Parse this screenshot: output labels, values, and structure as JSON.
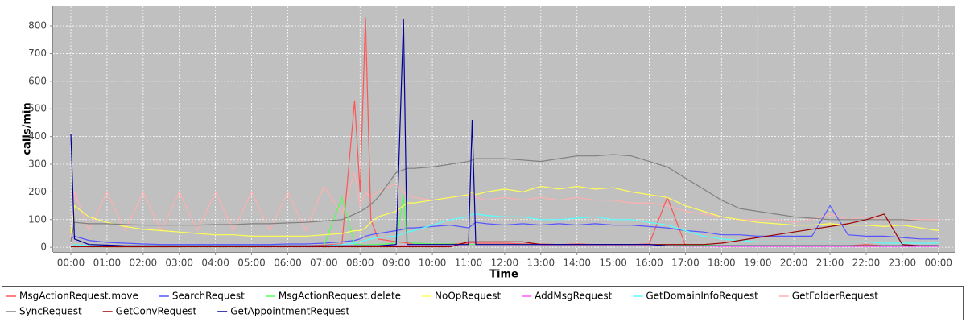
{
  "chart_data": {
    "type": "line",
    "x_label": "Time",
    "y_label": "calls/min",
    "x": [
      0,
      0.1,
      0.5,
      1,
      1.5,
      2,
      2.5,
      3,
      3.5,
      4,
      4.5,
      5,
      5.5,
      6,
      6.5,
      7,
      7.5,
      7.85,
      8,
      8.15,
      8.3,
      8.5,
      9,
      9.2,
      9.3,
      9.5,
      10,
      10.5,
      11,
      11.1,
      11.2,
      11.5,
      12,
      12.5,
      13,
      13.5,
      14,
      14.5,
      15,
      15.5,
      16,
      16.5,
      17,
      17.5,
      18,
      18.5,
      19,
      19.5,
      20,
      20.5,
      21,
      21.5,
      22,
      22.5,
      23,
      23.5,
      24
    ],
    "xlim": [
      -0.49,
      24.45
    ],
    "xticks": [
      {
        "value": 0,
        "label": "00:00"
      },
      {
        "value": 1,
        "label": "01:00"
      },
      {
        "value": 2,
        "label": "02:00"
      },
      {
        "value": 3,
        "label": "03:00"
      },
      {
        "value": 4,
        "label": "04:00"
      },
      {
        "value": 5,
        "label": "05:00"
      },
      {
        "value": 6,
        "label": "06:00"
      },
      {
        "value": 7,
        "label": "07:00"
      },
      {
        "value": 8,
        "label": "08:00"
      },
      {
        "value": 9,
        "label": "09:00"
      },
      {
        "value": 10,
        "label": "10:00"
      },
      {
        "value": 11,
        "label": "11:00"
      },
      {
        "value": 12,
        "label": "12:00"
      },
      {
        "value": 13,
        "label": "13:00"
      },
      {
        "value": 14,
        "label": "14:00"
      },
      {
        "value": 15,
        "label": "15:00"
      },
      {
        "value": 16,
        "label": "16:00"
      },
      {
        "value": 17,
        "label": "17:00"
      },
      {
        "value": 18,
        "label": "18:00"
      },
      {
        "value": 19,
        "label": "19:00"
      },
      {
        "value": 20,
        "label": "20:00"
      },
      {
        "value": 21,
        "label": "21:00"
      },
      {
        "value": 22,
        "label": "22:00"
      },
      {
        "value": 23,
        "label": "23:00"
      },
      {
        "value": 24,
        "label": "00:00"
      }
    ],
    "ylim": [
      -17,
      870
    ],
    "yticks": [
      0,
      100,
      200,
      300,
      400,
      500,
      600,
      700,
      800
    ],
    "grid": true,
    "legend": "bottom",
    "series": [
      {
        "name": "MsgActionRequest.move",
        "color": "#ff5555",
        "values": [
          5,
          5,
          3,
          2,
          2,
          2,
          2,
          2,
          3,
          3,
          3,
          3,
          4,
          5,
          5,
          8,
          12,
          530,
          200,
          830,
          100,
          30,
          20,
          18,
          15,
          15,
          12,
          12,
          15,
          18,
          15,
          15,
          15,
          12,
          12,
          10,
          12,
          10,
          10,
          10,
          12,
          180,
          8,
          5,
          5,
          5,
          5,
          5,
          5,
          5,
          5,
          5,
          10,
          5,
          5,
          5,
          5
        ]
      },
      {
        "name": "SearchRequest",
        "color": "#5555ff",
        "values": [
          30,
          40,
          25,
          18,
          15,
          12,
          10,
          10,
          10,
          10,
          10,
          10,
          10,
          12,
          12,
          15,
          20,
          25,
          30,
          40,
          45,
          50,
          60,
          65,
          70,
          70,
          75,
          80,
          70,
          80,
          90,
          85,
          80,
          85,
          80,
          85,
          80,
          85,
          80,
          80,
          75,
          70,
          60,
          55,
          45,
          45,
          40,
          40,
          40,
          40,
          150,
          45,
          40,
          40,
          35,
          30,
          30
        ]
      },
      {
        "name": "MsgActionRequest.delete",
        "color": "#55ff55",
        "values": [
          3,
          3,
          2,
          2,
          2,
          2,
          2,
          2,
          2,
          2,
          2,
          2,
          3,
          3,
          3,
          5,
          180,
          10,
          10,
          8,
          10,
          10,
          15,
          190,
          20,
          15,
          12,
          12,
          10,
          10,
          10,
          10,
          10,
          10,
          10,
          10,
          10,
          10,
          10,
          10,
          10,
          10,
          8,
          8,
          5,
          5,
          5,
          5,
          5,
          5,
          5,
          5,
          5,
          5,
          5,
          5,
          5
        ]
      },
      {
        "name": "NoOpRequest",
        "color": "#ffff55",
        "values": [
          50,
          150,
          110,
          90,
          75,
          65,
          60,
          55,
          50,
          45,
          45,
          40,
          40,
          40,
          40,
          45,
          50,
          60,
          60,
          70,
          90,
          110,
          130,
          150,
          160,
          160,
          170,
          180,
          190,
          200,
          190,
          200,
          210,
          200,
          220,
          210,
          220,
          210,
          215,
          200,
          190,
          180,
          150,
          130,
          110,
          100,
          90,
          85,
          80,
          80,
          85,
          80,
          80,
          75,
          80,
          70,
          60
        ]
      },
      {
        "name": "AddMsgRequest",
        "color": "#ff55ff",
        "values": [
          3,
          3,
          3,
          3,
          3,
          3,
          3,
          3,
          3,
          3,
          3,
          3,
          3,
          3,
          3,
          3,
          4,
          5,
          5,
          5,
          5,
          5,
          5,
          5,
          5,
          5,
          5,
          5,
          5,
          5,
          5,
          5,
          5,
          5,
          5,
          5,
          5,
          5,
          5,
          5,
          5,
          5,
          4,
          4,
          3,
          3,
          3,
          3,
          3,
          3,
          3,
          3,
          3,
          3,
          3,
          3,
          3
        ]
      },
      {
        "name": "GetDomainInfoRequest",
        "color": "#55ffff",
        "values": [
          5,
          10,
          5,
          5,
          5,
          5,
          5,
          5,
          5,
          5,
          5,
          5,
          5,
          5,
          5,
          5,
          10,
          15,
          20,
          25,
          30,
          35,
          40,
          50,
          55,
          60,
          80,
          100,
          110,
          120,
          120,
          115,
          110,
          110,
          100,
          100,
          105,
          110,
          100,
          100,
          90,
          80,
          60,
          40,
          30,
          25,
          20,
          20,
          20,
          20,
          20,
          20,
          20,
          15,
          15,
          15,
          15
        ]
      },
      {
        "name": "GetFolderRequest",
        "color": "#ffafaf",
        "values": [
          20,
          200,
          60,
          200,
          60,
          200,
          60,
          200,
          60,
          200,
          60,
          200,
          60,
          200,
          60,
          220,
          120,
          270,
          150,
          200,
          180,
          200,
          230,
          200,
          190,
          180,
          170,
          180,
          190,
          190,
          180,
          170,
          180,
          170,
          180,
          170,
          180,
          170,
          170,
          160,
          160,
          150,
          130,
          120,
          110,
          100,
          100,
          100,
          90,
          100,
          120,
          100,
          110,
          100,
          100,
          100,
          100
        ]
      },
      {
        "name": "SyncRequest",
        "color": "#808080",
        "values": [
          20,
          90,
          85,
          85,
          82,
          80,
          80,
          80,
          80,
          82,
          82,
          85,
          85,
          88,
          90,
          95,
          100,
          120,
          130,
          140,
          155,
          180,
          270,
          280,
          285,
          285,
          290,
          300,
          310,
          315,
          320,
          320,
          320,
          315,
          310,
          320,
          330,
          330,
          335,
          330,
          310,
          290,
          250,
          210,
          170,
          140,
          130,
          120,
          110,
          105,
          100,
          100,
          100,
          100,
          100,
          95,
          95
        ]
      },
      {
        "name": "GetConvRequest",
        "color": "#990000",
        "values": [
          2,
          2,
          2,
          2,
          2,
          2,
          2,
          2,
          2,
          2,
          2,
          2,
          2,
          2,
          2,
          2,
          2,
          2,
          2,
          2,
          2,
          2,
          2,
          2,
          2,
          2,
          2,
          2,
          20,
          20,
          20,
          20,
          20,
          20,
          10,
          10,
          10,
          10,
          10,
          10,
          10,
          10,
          10,
          10,
          15,
          25,
          35,
          45,
          55,
          65,
          75,
          85,
          100,
          120,
          10,
          5,
          5
        ]
      },
      {
        "name": "GetAppointmentRequest",
        "color": "#000099",
        "values": [
          410,
          30,
          10,
          8,
          5,
          5,
          5,
          5,
          5,
          5,
          5,
          5,
          5,
          5,
          5,
          5,
          5,
          5,
          5,
          5,
          5,
          5,
          10,
          825,
          10,
          10,
          10,
          10,
          10,
          460,
          10,
          10,
          10,
          10,
          10,
          10,
          10,
          10,
          10,
          10,
          10,
          5,
          5,
          5,
          5,
          5,
          5,
          5,
          5,
          5,
          5,
          5,
          5,
          5,
          5,
          5,
          5
        ]
      }
    ]
  }
}
